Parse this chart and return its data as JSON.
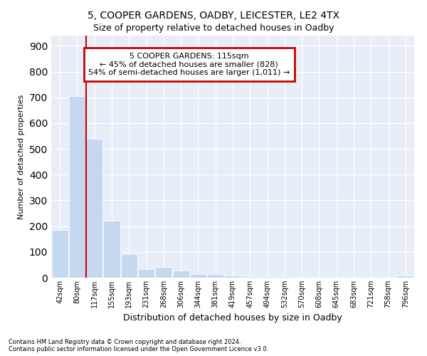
{
  "title1": "5, COOPER GARDENS, OADBY, LEICESTER, LE2 4TX",
  "title2": "Size of property relative to detached houses in Oadby",
  "xlabel": "Distribution of detached houses by size in Oadby",
  "ylabel": "Number of detached properties",
  "footer1": "Contains HM Land Registry data © Crown copyright and database right 2024.",
  "footer2": "Contains public sector information licensed under the Open Government Licence v3.0.",
  "annotation_line1": "5 COOPER GARDENS: 115sqm",
  "annotation_line2": "← 45% of detached houses are smaller (828)",
  "annotation_line3": "54% of semi-detached houses are larger (1,011) →",
  "bar_color": "#c5d8f0",
  "bar_edge_color": "#c5d8f0",
  "vline_color": "#cc0000",
  "ann_box_edge_color": "#cc0000",
  "bg_color": "#e8eef8",
  "categories": [
    "42sqm",
    "80sqm",
    "117sqm",
    "155sqm",
    "193sqm",
    "231sqm",
    "268sqm",
    "306sqm",
    "344sqm",
    "381sqm",
    "419sqm",
    "457sqm",
    "494sqm",
    "532sqm",
    "570sqm",
    "608sqm",
    "645sqm",
    "683sqm",
    "721sqm",
    "758sqm",
    "796sqm"
  ],
  "values": [
    185,
    705,
    540,
    220,
    90,
    32,
    42,
    28,
    15,
    14,
    8,
    5,
    5,
    5,
    0,
    0,
    0,
    0,
    0,
    0,
    8
  ],
  "ylim": [
    0,
    940
  ],
  "yticks": [
    0,
    100,
    200,
    300,
    400,
    500,
    600,
    700,
    800,
    900
  ],
  "vline_x": 1.5
}
